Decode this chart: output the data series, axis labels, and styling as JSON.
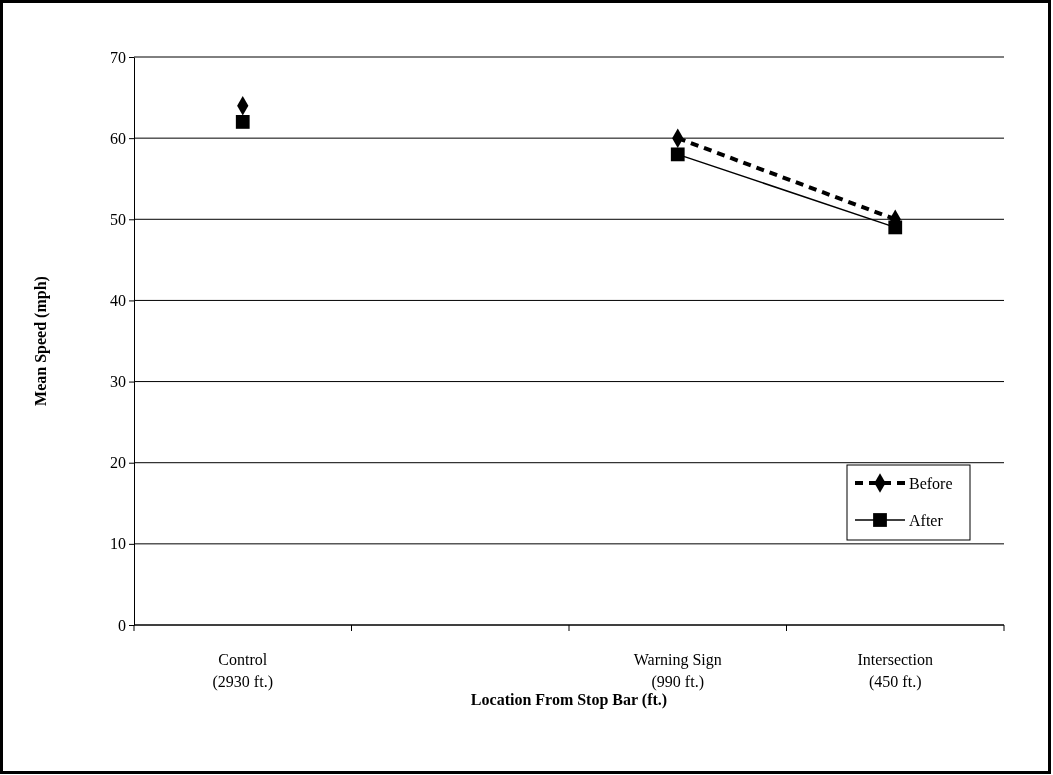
{
  "chart_data": {
    "type": "line",
    "xlabel": "Location From Stop Bar (ft.)",
    "ylabel": "Mean Speed (mph)",
    "categories": [
      "Control\n(2930 ft.)",
      null,
      "Warning Sign\n(990 ft.)",
      "Intersection\n(450 ft.)"
    ],
    "series": [
      {
        "name": "Before",
        "color": "#000000",
        "values": [
          64,
          null,
          60,
          50
        ],
        "marker": "diamond",
        "line_style": "dashed"
      },
      {
        "name": "After",
        "color": "#000000",
        "values": [
          62,
          null,
          58,
          49
        ],
        "marker": "square",
        "line_style": "solid"
      }
    ],
    "ylim": [
      0,
      70
    ],
    "yticks": [
      0,
      10,
      20,
      30,
      40,
      50,
      60,
      70
    ],
    "grid": "y",
    "legend": "bottom right"
  }
}
